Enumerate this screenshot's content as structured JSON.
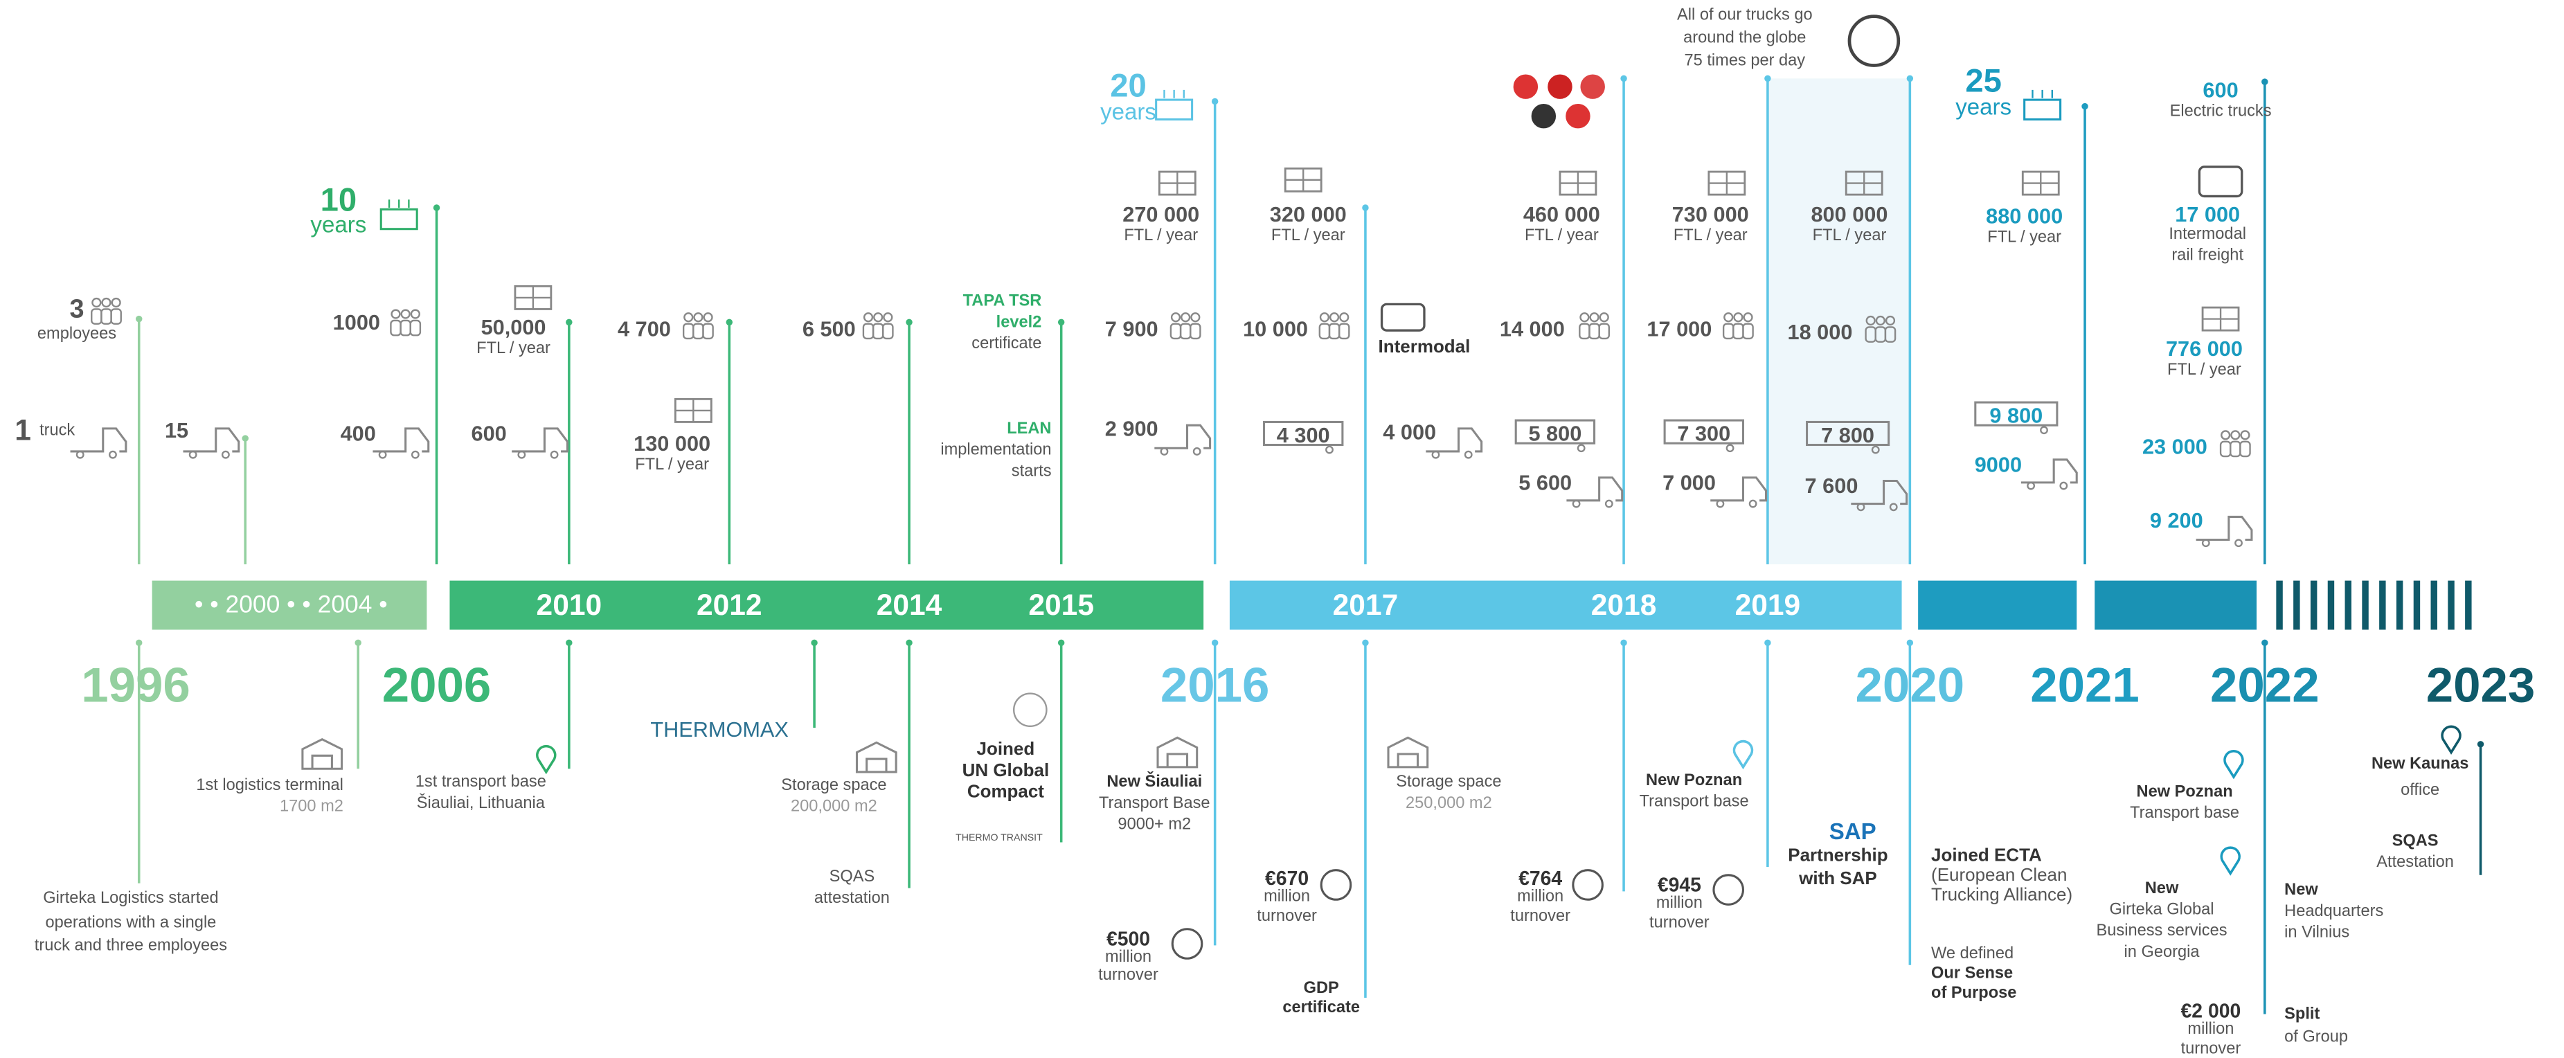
{
  "years": [
    "1996",
    "2006",
    "2016",
    "2020",
    "2021",
    "2022",
    "2023"
  ],
  "band": {
    "early": "• • 2000 • • 2004 •",
    "labels": [
      "2010",
      "2012",
      "2014",
      "2015",
      "2017",
      "2018",
      "2019"
    ]
  },
  "notes": [
    [
      "3",
      "employees"
    ],
    [
      "1"
    ],
    [
      "truck"
    ],
    [
      "15"
    ],
    [
      "10",
      "years"
    ],
    [
      "1000"
    ],
    [
      "400"
    ],
    [
      "50,000",
      "FTL / year"
    ],
    [
      "600"
    ],
    [
      "4 700"
    ],
    [
      "130 000",
      "FTL / year"
    ],
    [
      "6 500"
    ],
    [
      "TAPA TSR",
      "level2"
    ],
    [
      "certificate"
    ],
    [
      "LEAN"
    ],
    [
      "implementation",
      "starts"
    ],
    [
      "20",
      "years"
    ],
    [
      "270 000",
      "FTL / year"
    ],
    [
      "7 900"
    ],
    [
      "2 900"
    ],
    [
      "320 000",
      "FTL / year"
    ],
    [
      "10 000"
    ],
    [
      "Intermodal"
    ],
    [
      "4 300"
    ],
    [
      "4 000"
    ],
    [
      "460 000",
      "FTL / year"
    ],
    [
      "14 000"
    ],
    [
      "5 800"
    ],
    [
      "5 600"
    ],
    [
      "730 000",
      "FTL / year"
    ],
    [
      "17 000"
    ],
    [
      "7 300"
    ],
    [
      "7 000"
    ],
    [
      "All of our trucks go",
      "around the globe",
      "75 times per day"
    ],
    [
      "800 000",
      "FTL / year"
    ],
    [
      "18 000"
    ],
    [
      "7 800"
    ],
    [
      "7 600"
    ],
    [
      "25",
      "years"
    ],
    [
      "880 000",
      "FTL / year"
    ],
    [
      "9 800"
    ],
    [
      "9000"
    ],
    [
      "600",
      "Electric trucks"
    ],
    [
      "17 000",
      "Intermodal",
      "rail freight"
    ],
    [
      "776 000",
      "FTL / year"
    ],
    [
      "23 000"
    ],
    [
      "9 200"
    ],
    [
      "Girteka Logistics started",
      "operations with a single",
      "truck and three employees"
    ],
    [
      "1st logistics terminal",
      "1700 m2"
    ],
    [
      "1st transport base",
      "Šiauliai, Lithuania"
    ],
    [
      "THERMOMAX"
    ],
    [
      "Storage space",
      "200,000 m2"
    ],
    [
      "SQAS",
      "attestation"
    ],
    [
      "Joined",
      "UN Global",
      "Compact"
    ],
    [
      "THERMO TRANSIT"
    ],
    [
      "New Šiauliai",
      "Transport Base",
      "9000+ m2"
    ],
    [
      "€500",
      "million",
      "turnover"
    ],
    [
      "Storage space",
      "250,000 m2"
    ],
    [
      "€670",
      "million",
      "turnover"
    ],
    [
      "GDP",
      "certificate"
    ],
    [
      "New Poznan",
      "Transport base"
    ],
    [
      "€764",
      "million",
      "turnover"
    ],
    [
      "€945",
      "million",
      "turnover"
    ],
    [
      "SAP"
    ],
    [
      "Partnership",
      "with SAP"
    ],
    [
      "Joined ECTA",
      "(European Clean",
      "Trucking Alliance)"
    ],
    [
      "We defined",
      "Our Sense",
      "of Purpose"
    ],
    [
      "New Poznan",
      "Transport base"
    ],
    [
      "New",
      "Girteka Global",
      "Business services",
      "in Georgia"
    ],
    [
      "€2 000",
      "million",
      "turnover"
    ],
    [
      "New",
      "Headquarters",
      "in Vilnius"
    ],
    [
      "Split",
      "of Group"
    ],
    [
      "New Kaunas",
      "office"
    ],
    [
      "SQAS",
      "Attestation"
    ]
  ]
}
